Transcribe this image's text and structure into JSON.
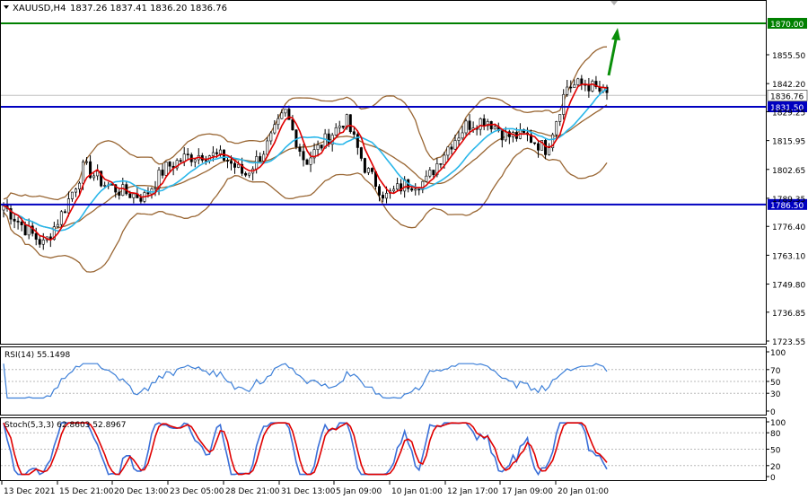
{
  "app": {
    "symbol_label": "XAUUSD,H4",
    "ohlc_readout": "1837.26 1837.41 1836.20 1836.76"
  },
  "colors": {
    "background": "#ffffff",
    "grid": "#d8d8d8",
    "candle_bull": "#2e9a2e",
    "candle_bear": "#cc0000",
    "bollinger": "#996633",
    "ma_fast": "#e00000",
    "ma_slow": "#2ab7ea",
    "level_line": "#0000c0",
    "target_line": "#008000",
    "arrow": "#0a8f0a",
    "oscillator_blue": "#3a6fd8",
    "oscillator_red": "#e00000",
    "rsi_line": "#3c7fd8"
  },
  "price_axis": {
    "ticks": [
      "1855.50",
      "1842.20",
      "1829.25",
      "1815.95",
      "1802.65",
      "1789.35",
      "1776.40",
      "1763.10",
      "1749.80",
      "1736.85",
      "1723.55"
    ],
    "tick_values": [
      1855.5,
      1842.2,
      1829.25,
      1815.95,
      1802.65,
      1789.35,
      1776.4,
      1763.1,
      1749.8,
      1736.85,
      1723.55
    ],
    "current_price": "1836.76",
    "levels": [
      {
        "label": "1870.00",
        "value": 1870.0,
        "kind": "target"
      },
      {
        "label": "1831.50",
        "value": 1831.5,
        "kind": "resistance"
      },
      {
        "label": "1786.50",
        "value": 1786.5,
        "kind": "support"
      }
    ]
  },
  "time_axis": {
    "labels": [
      "13 Dec 2021",
      "15 Dec 21:00",
      "20 Dec 13:00",
      "23 Dec 05:00",
      "28 Dec 21:00",
      "31 Dec 13:00",
      "5 Jan 09:00",
      "10 Jan 01:00",
      "12 Jan 17:00",
      "17 Jan 09:00",
      "20 Jan 01:00"
    ]
  },
  "rsi": {
    "label": "RSI(14) 55.1498",
    "ticks": [
      "100",
      "70",
      "50",
      "30",
      "0"
    ]
  },
  "stoch": {
    "label": "Stoch(5,3,3) 62.8603 52.8967",
    "ticks": [
      "100",
      "80",
      "50",
      "20",
      "0"
    ]
  },
  "chart_data": {
    "type": "candlestick",
    "instrument": "XAUUSD",
    "timeframe": "H4",
    "close_path": [
      {
        "x": "13 Dec 2021",
        "y": 1786
      },
      {
        "x": "14 Dec",
        "y": 1776
      },
      {
        "x": "15 Dec",
        "y": 1768
      },
      {
        "x": "15 Dec 21:00",
        "y": 1784
      },
      {
        "x": "16 Dec",
        "y": 1804
      },
      {
        "x": "17 Dec",
        "y": 1796
      },
      {
        "x": "20 Dec 13:00",
        "y": 1792
      },
      {
        "x": "21 Dec",
        "y": 1790
      },
      {
        "x": "22 Dec",
        "y": 1803
      },
      {
        "x": "23 Dec 05:00",
        "y": 1808
      },
      {
        "x": "24 Dec",
        "y": 1810
      },
      {
        "x": "27 Dec",
        "y": 1808
      },
      {
        "x": "28 Dec 21:00",
        "y": 1800
      },
      {
        "x": "29 Dec",
        "y": 1812
      },
      {
        "x": "30 Dec",
        "y": 1829
      },
      {
        "x": "31 Dec 13:00",
        "y": 1806
      },
      {
        "x": "3 Jan",
        "y": 1816
      },
      {
        "x": "4 Jan",
        "y": 1826
      },
      {
        "x": "5 Jan 09:00",
        "y": 1803
      },
      {
        "x": "6 Jan",
        "y": 1790
      },
      {
        "x": "7 Jan",
        "y": 1796
      },
      {
        "x": "10 Jan 01:00",
        "y": 1797
      },
      {
        "x": "11 Jan",
        "y": 1812
      },
      {
        "x": "12 Jan 17:00",
        "y": 1823
      },
      {
        "x": "13 Jan",
        "y": 1826
      },
      {
        "x": "14 Jan",
        "y": 1818
      },
      {
        "x": "17 Jan 09:00",
        "y": 1818
      },
      {
        "x": "18 Jan",
        "y": 1812
      },
      {
        "x": "19 Jan",
        "y": 1841
      },
      {
        "x": "20 Jan 01:00",
        "y": 1842
      },
      {
        "x": "21 Jan",
        "y": 1836.76
      }
    ],
    "ylim": [
      1720,
      1875
    ],
    "grid": false
  }
}
